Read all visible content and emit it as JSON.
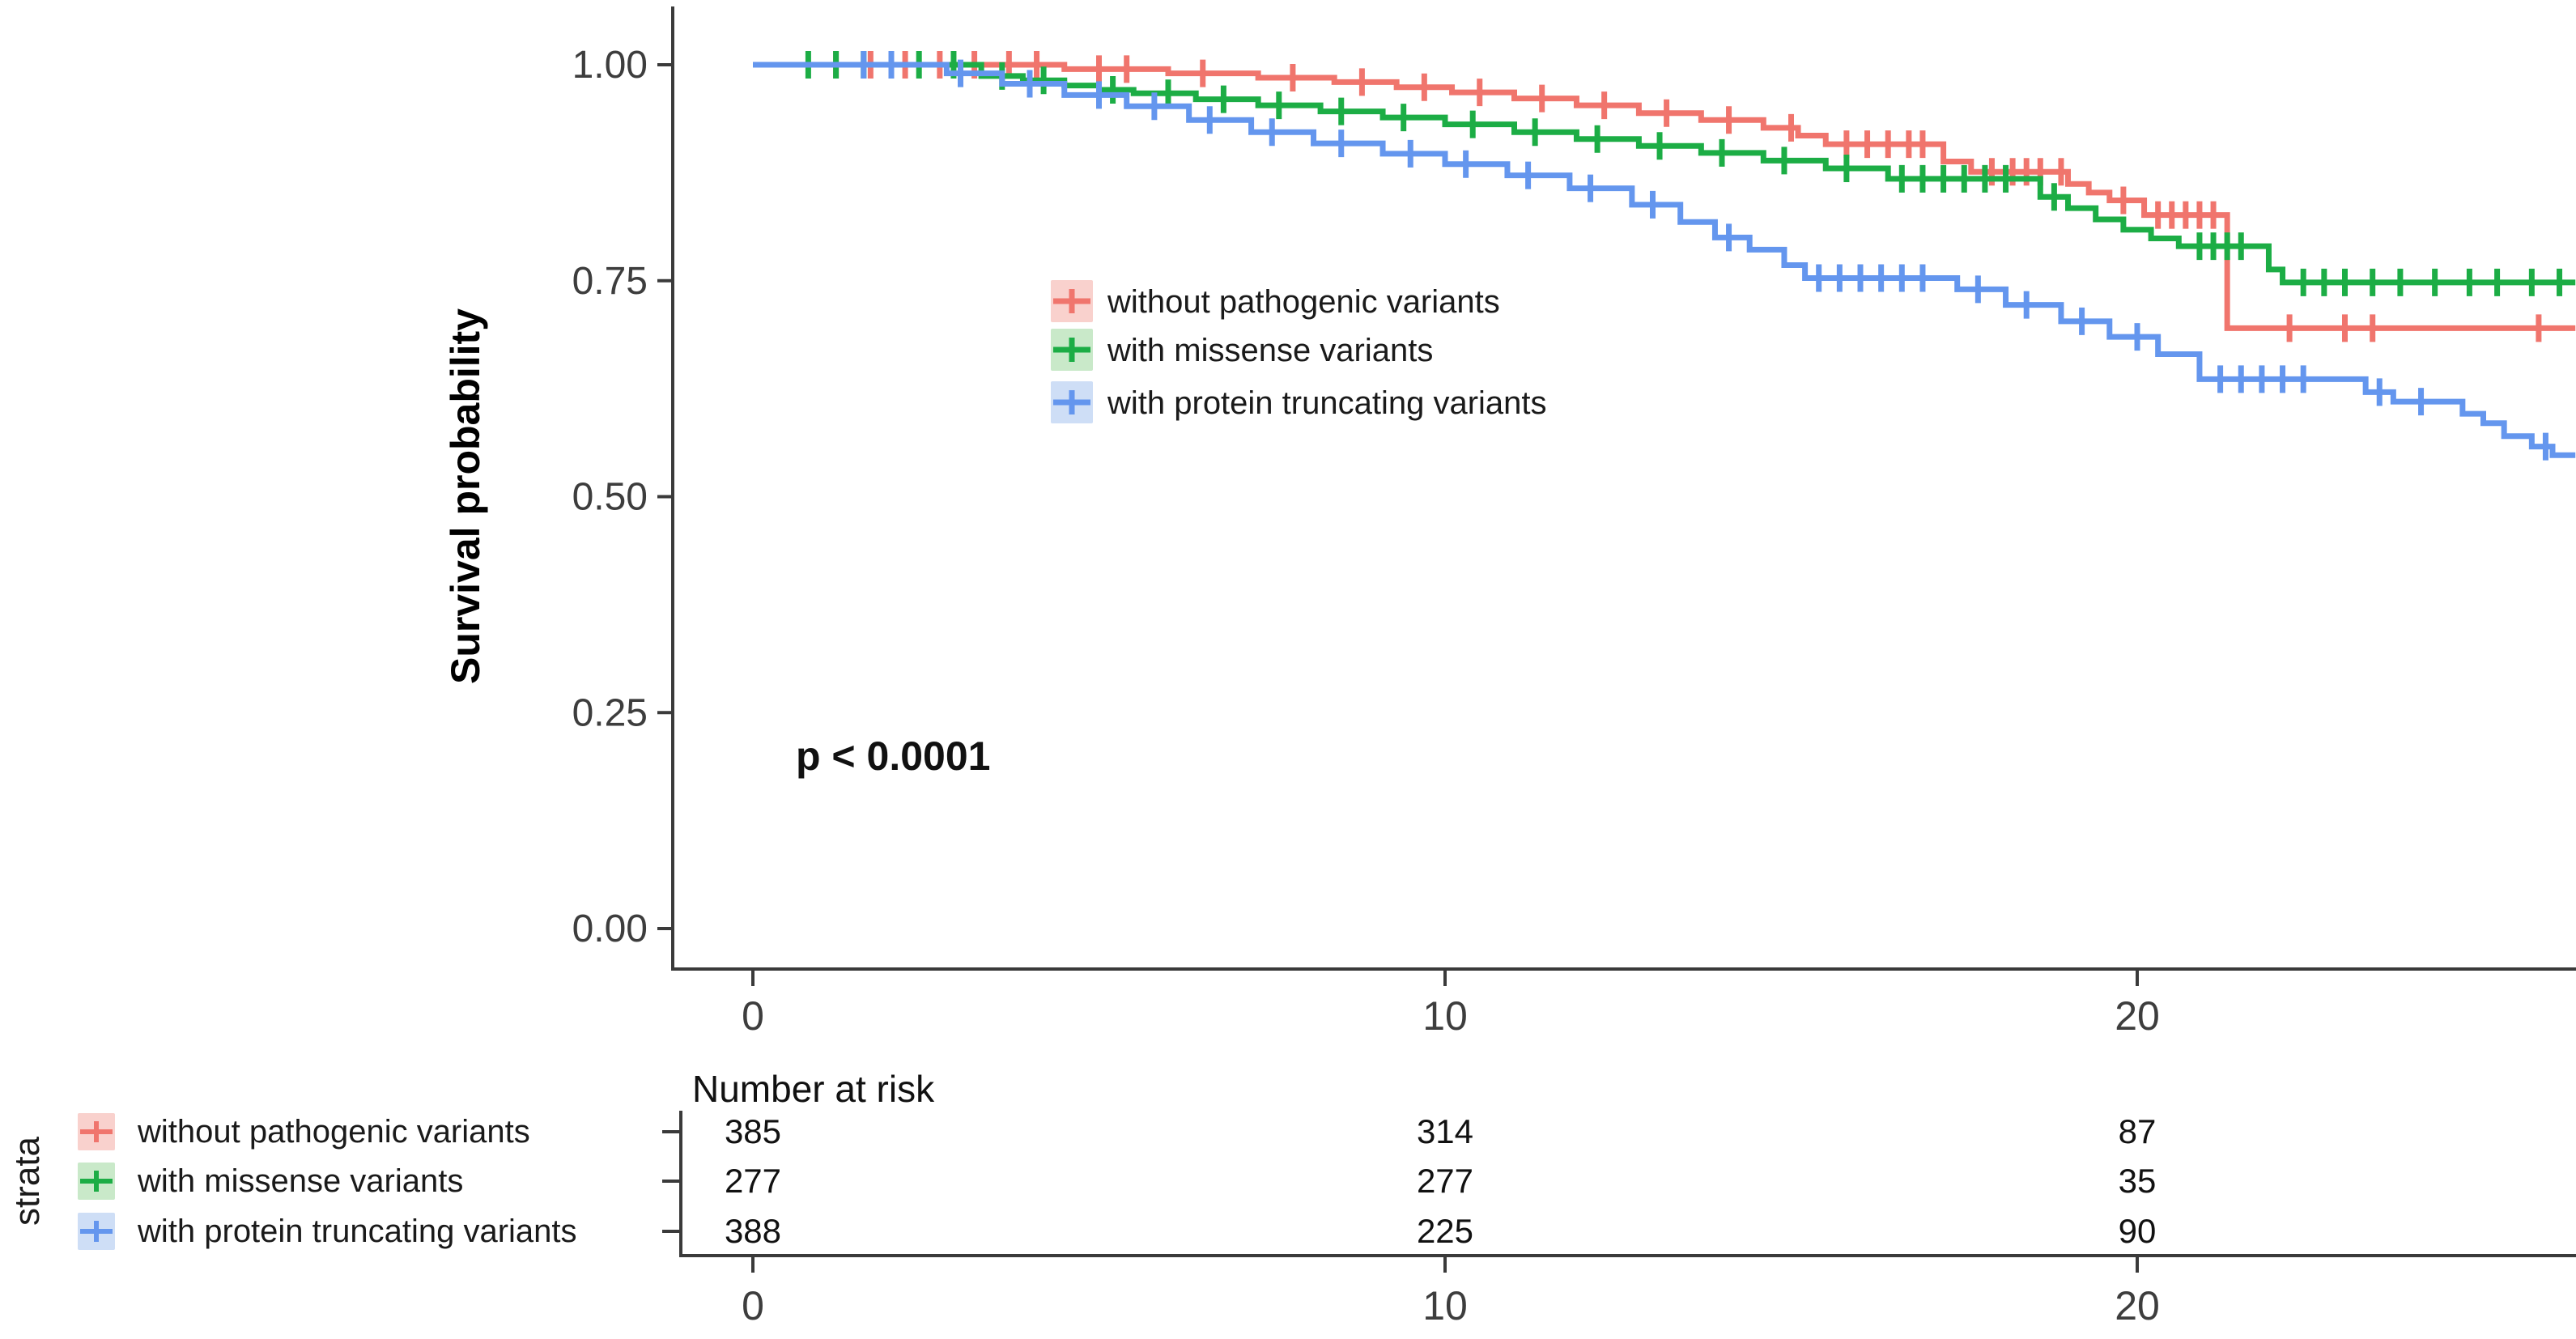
{
  "chart_data": {
    "type": "line",
    "subtype": "kaplan-meier-step-curves",
    "title": "",
    "xlabel": "",
    "ylabel": "Survival probability",
    "xlim": [
      -1.2,
      26.35
    ],
    "ylim": [
      0.0,
      1.0
    ],
    "x_ticks": [
      0,
      10,
      20
    ],
    "y_ticks": [
      {
        "label": "1.00",
        "value": 1.0
      },
      {
        "label": "0.75",
        "value": 0.75
      },
      {
        "label": "0.50",
        "value": 0.5
      },
      {
        "label": "0.25",
        "value": 0.25
      },
      {
        "label": "0.00",
        "value": 0.0
      }
    ],
    "grid": false,
    "legend_position": "inside-upper-middle",
    "pvalue_annotation": "p < 0.0001",
    "axis_color": "#3a3a3a",
    "tick_text_color": "#3d3d3d",
    "end_time": 26.33,
    "series": [
      {
        "name": "without pathogenic variants",
        "color": "#F0756D",
        "key_bg": "#F9D1CD",
        "steps": [
          [
            0,
            1.0
          ],
          [
            4.5,
            0.995
          ],
          [
            6.0,
            0.99
          ],
          [
            7.3,
            0.985
          ],
          [
            8.4,
            0.98
          ],
          [
            9.3,
            0.974
          ],
          [
            10.1,
            0.968
          ],
          [
            11.0,
            0.961
          ],
          [
            11.9,
            0.953
          ],
          [
            12.8,
            0.944
          ],
          [
            13.7,
            0.936
          ],
          [
            14.6,
            0.927
          ],
          [
            15.1,
            0.918
          ],
          [
            15.5,
            0.908
          ],
          [
            17.2,
            0.888
          ],
          [
            17.6,
            0.876
          ],
          [
            19.0,
            0.862
          ],
          [
            19.3,
            0.852
          ],
          [
            19.6,
            0.843
          ],
          [
            20.1,
            0.826
          ],
          [
            21.3,
            0.695
          ]
        ],
        "censor_times": [
          1.2,
          1.7,
          2.2,
          2.7,
          3.2,
          3.7,
          4.1,
          5.0,
          5.4,
          6.5,
          7.8,
          8.8,
          9.7,
          10.5,
          11.4,
          12.3,
          13.2,
          14.1,
          15.0,
          15.8,
          16.1,
          16.4,
          16.7,
          16.9,
          17.9,
          18.2,
          18.4,
          18.6,
          18.9,
          19.8,
          20.3,
          20.5,
          20.7,
          20.9,
          21.1,
          22.2,
          23.0,
          23.4,
          25.8
        ]
      },
      {
        "name": "with missense variants",
        "color": "#1CAD45",
        "key_bg": "#C9E9C9",
        "steps": [
          [
            0,
            1.0
          ],
          [
            3.3,
            0.987
          ],
          [
            3.9,
            0.982
          ],
          [
            4.5,
            0.976
          ],
          [
            5.0,
            0.971
          ],
          [
            5.5,
            0.967
          ],
          [
            6.4,
            0.96
          ],
          [
            7.3,
            0.953
          ],
          [
            8.2,
            0.946
          ],
          [
            9.1,
            0.939
          ],
          [
            10.0,
            0.931
          ],
          [
            11.0,
            0.922
          ],
          [
            11.9,
            0.914
          ],
          [
            12.8,
            0.906
          ],
          [
            13.7,
            0.898
          ],
          [
            14.6,
            0.889
          ],
          [
            15.5,
            0.88
          ],
          [
            16.4,
            0.868
          ],
          [
            18.6,
            0.847
          ],
          [
            19.0,
            0.834
          ],
          [
            19.4,
            0.821
          ],
          [
            19.8,
            0.809
          ],
          [
            20.2,
            0.799
          ],
          [
            20.6,
            0.79
          ],
          [
            21.9,
            0.763
          ],
          [
            22.1,
            0.748
          ]
        ],
        "censor_times": [
          0.8,
          1.2,
          1.6,
          2.0,
          2.4,
          2.9,
          3.6,
          4.2,
          5.2,
          6.0,
          6.8,
          7.6,
          8.5,
          9.4,
          10.4,
          11.3,
          12.2,
          13.1,
          14.0,
          14.9,
          15.8,
          16.6,
          16.9,
          17.2,
          17.5,
          17.8,
          18.1,
          18.8,
          20.9,
          21.1,
          21.3,
          21.5,
          22.4,
          22.7,
          23.0,
          23.4,
          23.8,
          24.3,
          24.8,
          25.2,
          25.7,
          26.1
        ]
      },
      {
        "name": "with protein truncating variants",
        "color": "#6496EE",
        "key_bg": "#CEDEF6",
        "steps": [
          [
            0,
            1.0
          ],
          [
            2.8,
            0.99
          ],
          [
            3.6,
            0.978
          ],
          [
            4.5,
            0.965
          ],
          [
            5.4,
            0.952
          ],
          [
            6.3,
            0.936
          ],
          [
            7.2,
            0.922
          ],
          [
            8.1,
            0.909
          ],
          [
            9.1,
            0.897
          ],
          [
            10.0,
            0.885
          ],
          [
            10.9,
            0.872
          ],
          [
            11.8,
            0.857
          ],
          [
            12.7,
            0.838
          ],
          [
            13.4,
            0.818
          ],
          [
            13.9,
            0.8
          ],
          [
            14.4,
            0.786
          ],
          [
            14.9,
            0.768
          ],
          [
            15.2,
            0.753
          ],
          [
            17.4,
            0.74
          ],
          [
            18.1,
            0.722
          ],
          [
            18.9,
            0.703
          ],
          [
            19.6,
            0.685
          ],
          [
            20.3,
            0.665
          ],
          [
            20.9,
            0.636
          ],
          [
            23.3,
            0.621
          ],
          [
            23.7,
            0.61
          ],
          [
            24.7,
            0.596
          ],
          [
            25.0,
            0.585
          ],
          [
            25.3,
            0.57
          ],
          [
            25.7,
            0.558
          ],
          [
            26.0,
            0.548
          ]
        ],
        "censor_times": [
          1.6,
          2.0,
          3.0,
          4.0,
          5.0,
          5.8,
          6.6,
          7.5,
          8.5,
          9.5,
          10.3,
          11.2,
          12.1,
          13.0,
          14.1,
          15.4,
          15.7,
          16.0,
          16.3,
          16.6,
          16.9,
          17.7,
          18.4,
          19.2,
          20.0,
          21.2,
          21.5,
          21.8,
          22.1,
          22.4,
          23.5,
          24.1,
          25.9
        ]
      }
    ],
    "risk_table": {
      "title": "Number at risk",
      "axis_label": "strata",
      "time_points": [
        0,
        10,
        20
      ],
      "rows": [
        {
          "label": "without pathogenic variants",
          "values": [
            "385",
            "314",
            "87"
          ]
        },
        {
          "label": "with missense variants",
          "values": [
            "277",
            "277",
            "35"
          ]
        },
        {
          "label": "with protein truncating variants",
          "values": [
            "388",
            "225",
            "90"
          ]
        }
      ]
    }
  }
}
